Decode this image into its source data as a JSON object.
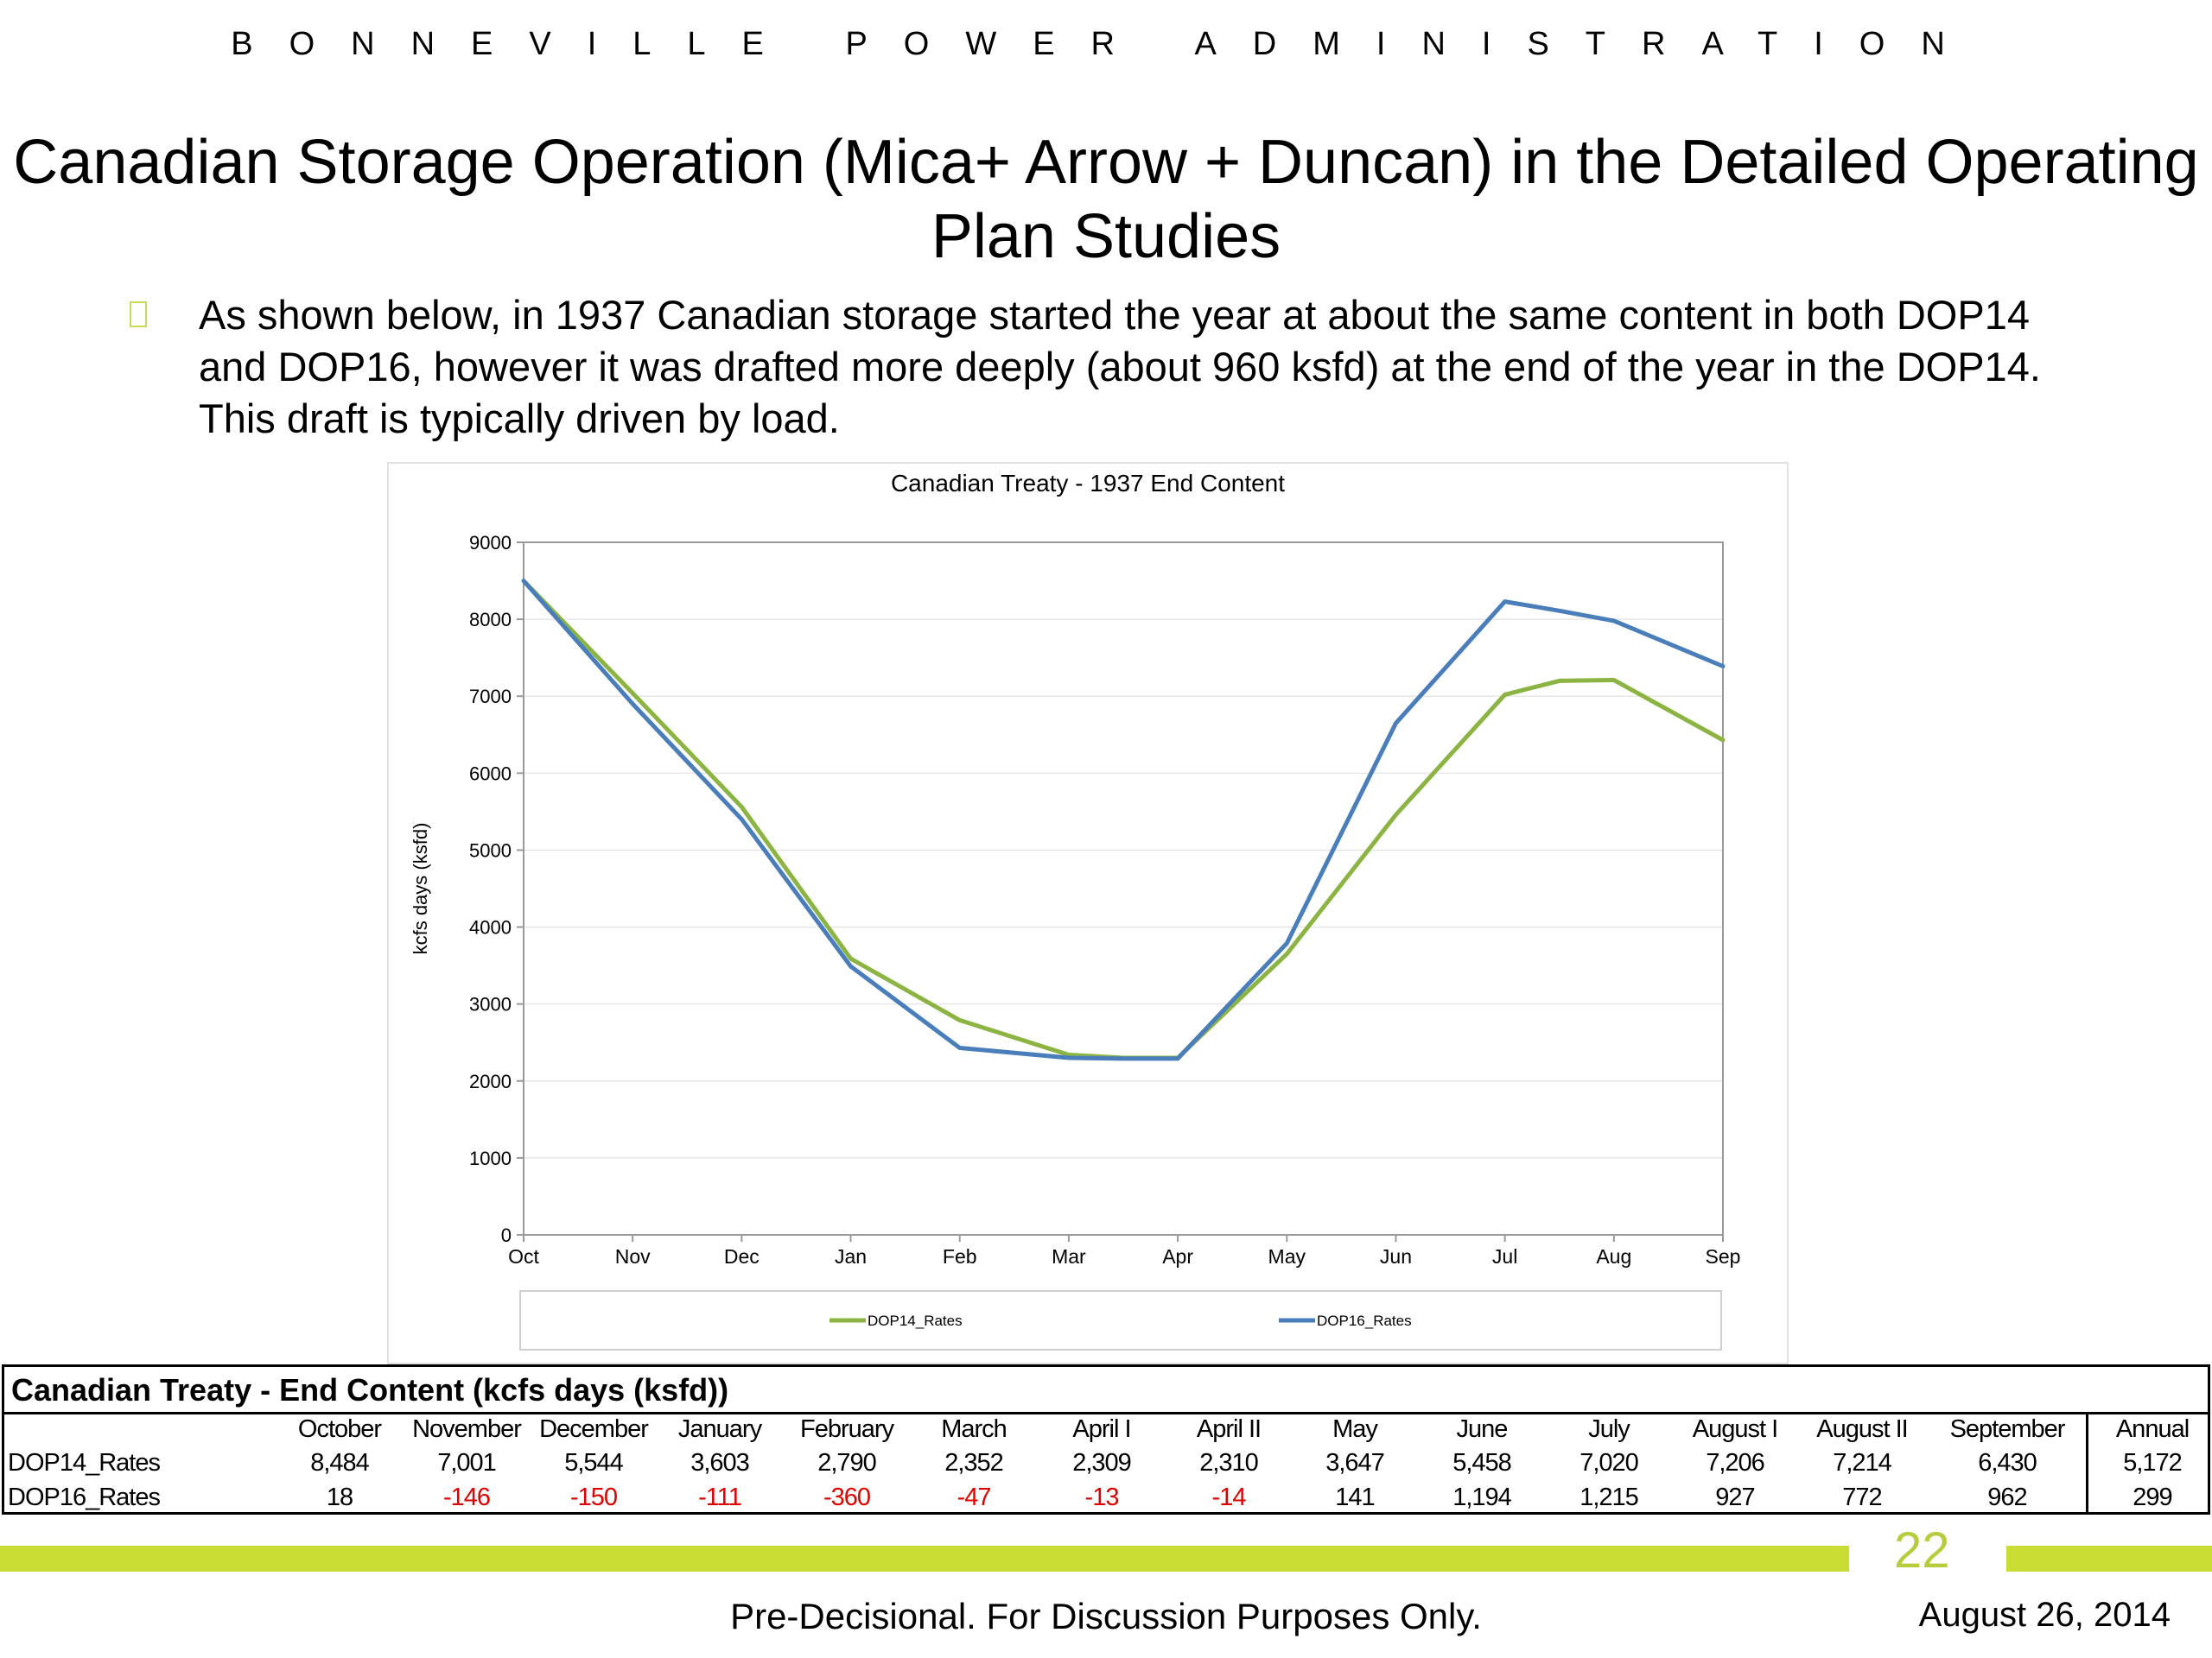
{
  "header": {
    "agency": "BONNEVILLE POWER ADMINISTRATION",
    "title": "Canadian Storage Operation (Mica+ Arrow + Duncan) in the Detailed Operating Plan Studies"
  },
  "bullet": {
    "text": "As shown below, in 1937 Canadian storage started the year at about the same content in both DOP14 and DOP16, however it was drafted more deeply (about 960 ksfd) at the end of the year in the DOP14. This draft is typically driven by load."
  },
  "chart_data": {
    "type": "line",
    "title": "Canadian Treaty - 1937 End Content",
    "ylabel": "kcfs days (ksfd)",
    "xlabel": "",
    "x_ticks": [
      "Oct",
      "Nov",
      "Dec",
      "Jan",
      "Feb",
      "Mar",
      "Apr",
      "May",
      "Jun",
      "Jul",
      "Aug",
      "Sep"
    ],
    "y_ticks": [
      0,
      1000,
      2000,
      3000,
      4000,
      5000,
      6000,
      7000,
      8000,
      9000
    ],
    "ylim": [
      0,
      9000
    ],
    "grid": "horizontal",
    "legend_position": "bottom",
    "x_positions": [
      0,
      1,
      2,
      3,
      4,
      5,
      5.5,
      6,
      7,
      8,
      9,
      9.5,
      10,
      11
    ],
    "series": [
      {
        "name": "DOP14_Rates",
        "color": "#8cb443",
        "values": [
          8500,
          7040,
          5560,
          3590,
          2790,
          2340,
          2300,
          2300,
          3650,
          5460,
          7020,
          7200,
          7210,
          6430
        ]
      },
      {
        "name": "DOP16_Rates",
        "color": "#4a7ebb",
        "values": [
          8500,
          6900,
          5400,
          3490,
          2430,
          2300,
          2290,
          2290,
          3790,
          6650,
          8230,
          8110,
          7980,
          7390
        ]
      }
    ]
  },
  "table": {
    "title": "Canadian Treaty - End Content (kcfs days (ksfd))",
    "columns": [
      "October",
      "November",
      "December",
      "January",
      "February",
      "March",
      "April I",
      "April II",
      "May",
      "June",
      "July",
      "August I",
      "August II",
      "September",
      "Annual"
    ],
    "rows": [
      {
        "label": "DOP14_Rates",
        "values": [
          "8,484",
          "7,001",
          "5,544",
          "3,603",
          "2,790",
          "2,352",
          "2,309",
          "2,310",
          "3,647",
          "5,458",
          "7,020",
          "7,206",
          "7,214",
          "6,430",
          "5,172"
        ]
      },
      {
        "label": "DOP16_Rates",
        "values": [
          "18",
          "-146",
          "-150",
          "-111",
          "-360",
          "-47",
          "-13",
          "-14",
          "141",
          "1,194",
          "1,215",
          "927",
          "772",
          "962",
          "299"
        ]
      }
    ]
  },
  "footer": {
    "page_number": "22",
    "note": "Pre-Decisional.  For Discussion Purposes Only.",
    "date": "August 26, 2014"
  }
}
